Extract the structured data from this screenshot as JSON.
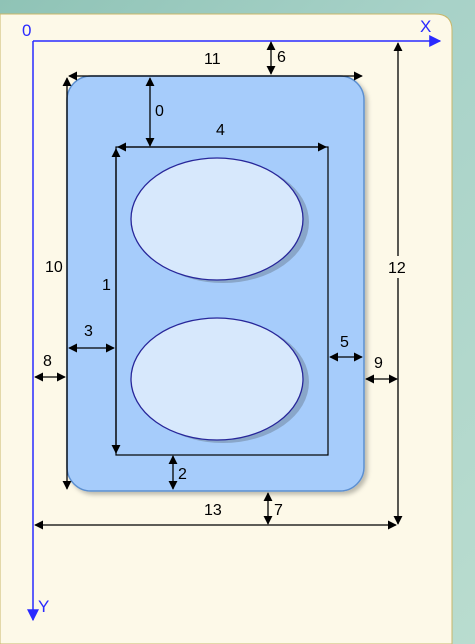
{
  "axes": {
    "origin_label": "0",
    "x_label": "X",
    "y_label": "Y"
  },
  "dimensions": [
    "0",
    "1",
    "2",
    "3",
    "4",
    "5",
    "6",
    "7",
    "8",
    "9",
    "10",
    "11",
    "12",
    "13"
  ],
  "colors": {
    "paper": "#fdf9e8",
    "outer_box": "#a6ccfb",
    "outer_border": "#5b8fd0",
    "ellipse_fill": "#d7e8fc",
    "ellipse_stroke": "#27269a",
    "axis": "#2a2aff",
    "dimension_line": "#000000"
  }
}
